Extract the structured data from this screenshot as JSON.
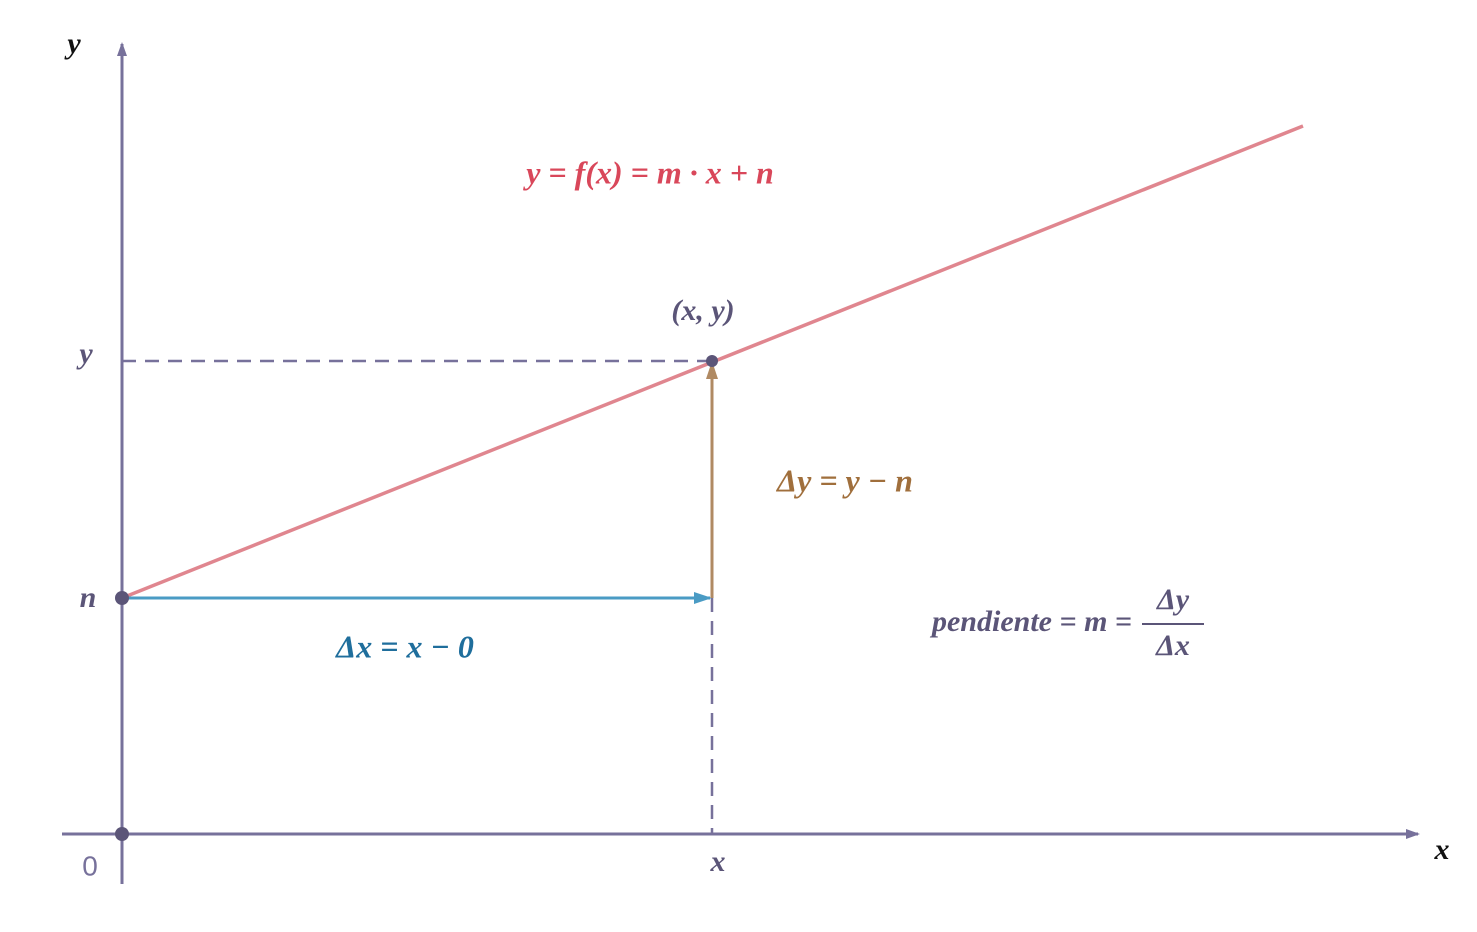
{
  "axes": {
    "y_label": "y",
    "x_label": "x",
    "origin": "0"
  },
  "ticks": {
    "y": "y",
    "n": "n",
    "x": "x"
  },
  "point_label": "(x, y)",
  "function_label": "y = f(x) = m · x + n",
  "delta_y_label": "Δy = y − n",
  "delta_x_label": "Δx = x − 0",
  "slope_label": {
    "lhs": "pendiente = m =",
    "numerator": "Δy",
    "denominator": "Δx"
  }
}
